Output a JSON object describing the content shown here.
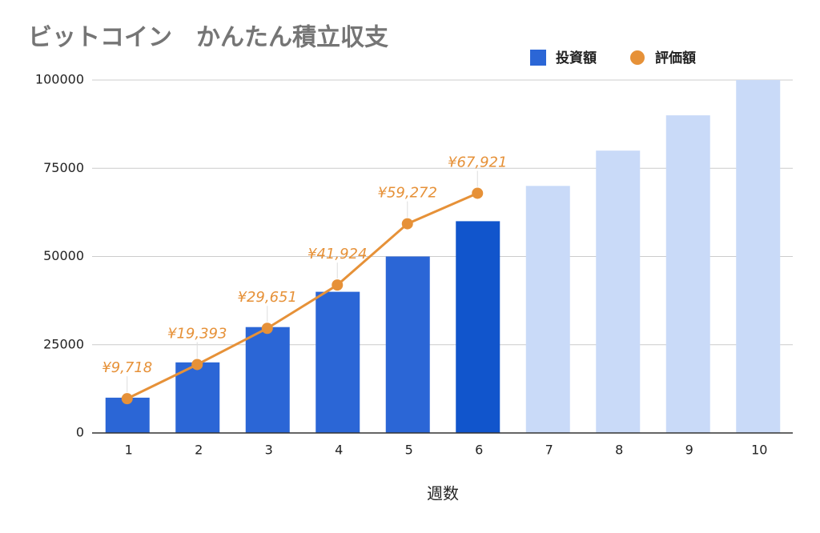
{
  "chart_data": {
    "type": "bar",
    "title": "ビットコイン　かんたん積立収支",
    "x_label": "週数",
    "categories": [
      "1",
      "2",
      "3",
      "4",
      "5",
      "6",
      "7",
      "8",
      "9",
      "10"
    ],
    "series": [
      {
        "name": "投資額",
        "type": "bar",
        "color": "#2b66d6",
        "colors": [
          "#2b66d6",
          "#2b66d6",
          "#2b66d6",
          "#2b66d6",
          "#2b66d6",
          "#1155cc",
          "#c9daf8",
          "#c9daf8",
          "#c9daf8",
          "#c9daf8"
        ],
        "values": [
          10000,
          20000,
          30000,
          40000,
          50000,
          60000,
          70000,
          80000,
          90000,
          100000
        ]
      },
      {
        "name": "評価額",
        "type": "line",
        "color": "#e69138",
        "values": [
          9718,
          19393,
          29651,
          41924,
          59272,
          67921,
          null,
          null,
          null,
          null
        ],
        "value_labels": [
          "¥9,718",
          "¥19,393",
          "¥29,651",
          "¥41,924",
          "¥59,272",
          "¥67,921",
          null,
          null,
          null,
          null
        ]
      }
    ],
    "ylim": [
      0,
      100000
    ],
    "yticks": [
      0,
      25000,
      50000,
      75000,
      100000
    ],
    "grid": true,
    "legend": "top-right"
  }
}
